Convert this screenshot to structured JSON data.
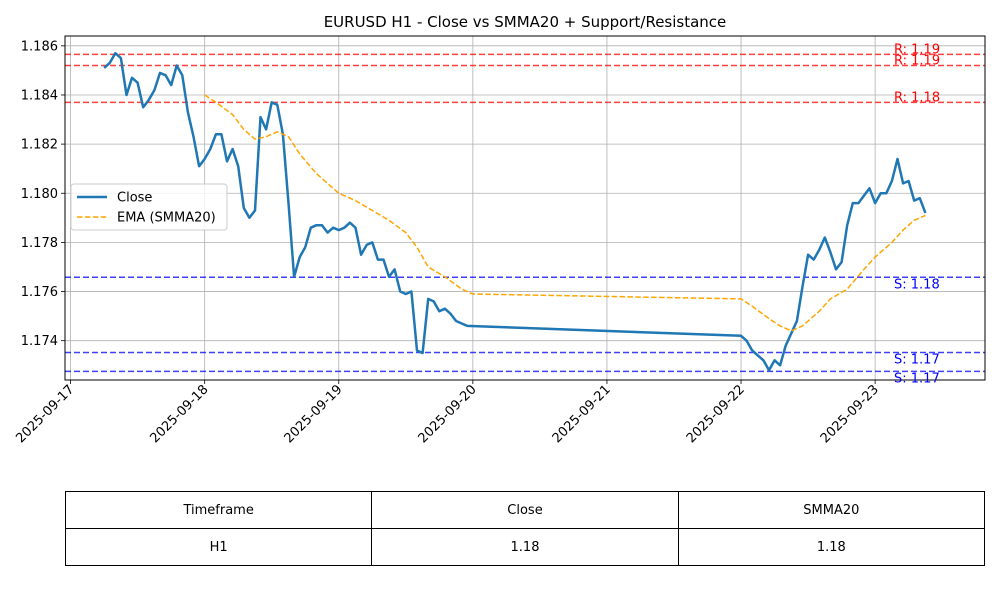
{
  "chart_data": {
    "type": "line",
    "title": "EURUSD H1 - Close vs SMMA20 + Support/Resistance",
    "xlabel": "",
    "ylabel": "",
    "xlim": [
      "2025-09-16 23:00",
      "2025-09-23 19:40"
    ],
    "ylim": [
      1.1724,
      1.1864
    ],
    "grid": true,
    "legend_position": "center-left",
    "x_ticks": [
      "2025-09-17",
      "2025-09-18",
      "2025-09-19",
      "2025-09-20",
      "2025-09-21",
      "2025-09-22",
      "2025-09-23"
    ],
    "y_ticks": [
      "1.174",
      "1.176",
      "1.178",
      "1.180",
      "1.182",
      "1.184",
      "1.186"
    ],
    "series": [
      {
        "name": "Close",
        "color": "#1f77b4",
        "style": "solid",
        "points": [
          [
            "2025-09-17 06:00",
            1.1851
          ],
          [
            "2025-09-17 07:00",
            1.1853
          ],
          [
            "2025-09-17 08:00",
            1.1857
          ],
          [
            "2025-09-17 09:00",
            1.1855
          ],
          [
            "2025-09-17 10:00",
            1.184
          ],
          [
            "2025-09-17 11:00",
            1.1847
          ],
          [
            "2025-09-17 12:00",
            1.1845
          ],
          [
            "2025-09-17 13:00",
            1.1835
          ],
          [
            "2025-09-17 14:00",
            1.1838
          ],
          [
            "2025-09-17 15:00",
            1.1842
          ],
          [
            "2025-09-17 16:00",
            1.1849
          ],
          [
            "2025-09-17 17:00",
            1.1848
          ],
          [
            "2025-09-17 18:00",
            1.1844
          ],
          [
            "2025-09-17 19:00",
            1.1852
          ],
          [
            "2025-09-17 20:00",
            1.1848
          ],
          [
            "2025-09-17 21:00",
            1.1833
          ],
          [
            "2025-09-17 22:00",
            1.1823
          ],
          [
            "2025-09-17 23:00",
            1.1811
          ],
          [
            "2025-09-18 00:00",
            1.1814
          ],
          [
            "2025-09-18 01:00",
            1.1818
          ],
          [
            "2025-09-18 02:00",
            1.1824
          ],
          [
            "2025-09-18 03:00",
            1.1824
          ],
          [
            "2025-09-18 04:00",
            1.1813
          ],
          [
            "2025-09-18 05:00",
            1.1818
          ],
          [
            "2025-09-18 06:00",
            1.1811
          ],
          [
            "2025-09-18 07:00",
            1.1794
          ],
          [
            "2025-09-18 08:00",
            1.179
          ],
          [
            "2025-09-18 09:00",
            1.1793
          ],
          [
            "2025-09-18 10:00",
            1.1831
          ],
          [
            "2025-09-18 11:00",
            1.1826
          ],
          [
            "2025-09-18 12:00",
            1.1837
          ],
          [
            "2025-09-18 13:00",
            1.1836
          ],
          [
            "2025-09-18 14:00",
            1.1824
          ],
          [
            "2025-09-18 15:00",
            1.1796
          ],
          [
            "2025-09-18 16:00",
            1.1766
          ],
          [
            "2025-09-18 17:00",
            1.1774
          ],
          [
            "2025-09-18 18:00",
            1.1778
          ],
          [
            "2025-09-18 19:00",
            1.1786
          ],
          [
            "2025-09-18 20:00",
            1.1787
          ],
          [
            "2025-09-18 21:00",
            1.1787
          ],
          [
            "2025-09-18 22:00",
            1.1784
          ],
          [
            "2025-09-18 23:00",
            1.1786
          ],
          [
            "2025-09-19 00:00",
            1.1785
          ],
          [
            "2025-09-19 01:00",
            1.1786
          ],
          [
            "2025-09-19 02:00",
            1.1788
          ],
          [
            "2025-09-19 03:00",
            1.1786
          ],
          [
            "2025-09-19 04:00",
            1.1775
          ],
          [
            "2025-09-19 05:00",
            1.1779
          ],
          [
            "2025-09-19 06:00",
            1.178
          ],
          [
            "2025-09-19 07:00",
            1.1773
          ],
          [
            "2025-09-19 08:00",
            1.1773
          ],
          [
            "2025-09-19 09:00",
            1.1766
          ],
          [
            "2025-09-19 10:00",
            1.1769
          ],
          [
            "2025-09-19 11:00",
            1.176
          ],
          [
            "2025-09-19 12:00",
            1.1759
          ],
          [
            "2025-09-19 13:00",
            1.176
          ],
          [
            "2025-09-19 14:00",
            1.1736
          ],
          [
            "2025-09-19 15:00",
            1.1735
          ],
          [
            "2025-09-19 16:00",
            1.1757
          ],
          [
            "2025-09-19 17:00",
            1.1756
          ],
          [
            "2025-09-19 18:00",
            1.1752
          ],
          [
            "2025-09-19 19:00",
            1.1753
          ],
          [
            "2025-09-19 20:00",
            1.1751
          ],
          [
            "2025-09-19 21:00",
            1.1748
          ],
          [
            "2025-09-19 22:00",
            1.1747
          ],
          [
            "2025-09-19 23:00",
            1.1746
          ],
          [
            "2025-09-22 00:00",
            1.1742
          ],
          [
            "2025-09-22 01:00",
            1.174
          ],
          [
            "2025-09-22 02:00",
            1.1736
          ],
          [
            "2025-09-22 03:00",
            1.1734
          ],
          [
            "2025-09-22 04:00",
            1.1732
          ],
          [
            "2025-09-22 05:00",
            1.1728
          ],
          [
            "2025-09-22 06:00",
            1.1732
          ],
          [
            "2025-09-22 07:00",
            1.173
          ],
          [
            "2025-09-22 08:00",
            1.1738
          ],
          [
            "2025-09-22 09:00",
            1.1743
          ],
          [
            "2025-09-22 10:00",
            1.1748
          ],
          [
            "2025-09-22 11:00",
            1.1762
          ],
          [
            "2025-09-22 12:00",
            1.1775
          ],
          [
            "2025-09-22 13:00",
            1.1773
          ],
          [
            "2025-09-22 14:00",
            1.1777
          ],
          [
            "2025-09-22 15:00",
            1.1782
          ],
          [
            "2025-09-22 16:00",
            1.1776
          ],
          [
            "2025-09-22 17:00",
            1.1769
          ],
          [
            "2025-09-22 18:00",
            1.1772
          ],
          [
            "2025-09-22 19:00",
            1.1787
          ],
          [
            "2025-09-22 20:00",
            1.1796
          ],
          [
            "2025-09-22 21:00",
            1.1796
          ],
          [
            "2025-09-22 22:00",
            1.1799
          ],
          [
            "2025-09-22 23:00",
            1.1802
          ],
          [
            "2025-09-23 00:00",
            1.1796
          ],
          [
            "2025-09-23 01:00",
            1.18
          ],
          [
            "2025-09-23 02:00",
            1.18
          ],
          [
            "2025-09-23 03:00",
            1.1805
          ],
          [
            "2025-09-23 04:00",
            1.1814
          ],
          [
            "2025-09-23 05:00",
            1.1804
          ],
          [
            "2025-09-23 06:00",
            1.1805
          ],
          [
            "2025-09-23 07:00",
            1.1797
          ],
          [
            "2025-09-23 08:00",
            1.1798
          ],
          [
            "2025-09-23 09:00",
            1.1792
          ]
        ]
      },
      {
        "name": "EMA (SMMA20)",
        "color": "#ffa500",
        "style": "dashed",
        "points": [
          [
            "2025-09-18 00:00",
            1.184
          ],
          [
            "2025-09-18 02:00",
            1.1837
          ],
          [
            "2025-09-18 05:00",
            1.1832
          ],
          [
            "2025-09-18 07:00",
            1.1826
          ],
          [
            "2025-09-18 09:00",
            1.1822
          ],
          [
            "2025-09-18 11:00",
            1.1823
          ],
          [
            "2025-09-18 13:00",
            1.1825
          ],
          [
            "2025-09-18 15:00",
            1.1823
          ],
          [
            "2025-09-18 17:00",
            1.1816
          ],
          [
            "2025-09-18 20:00",
            1.1808
          ],
          [
            "2025-09-19 00:00",
            1.18
          ],
          [
            "2025-09-19 03:00",
            1.1797
          ],
          [
            "2025-09-19 06:00",
            1.1793
          ],
          [
            "2025-09-19 09:00",
            1.1789
          ],
          [
            "2025-09-19 12:00",
            1.1784
          ],
          [
            "2025-09-19 14:00",
            1.1778
          ],
          [
            "2025-09-19 16:00",
            1.177
          ],
          [
            "2025-09-19 19:00",
            1.1766
          ],
          [
            "2025-09-19 22:00",
            1.1761
          ],
          [
            "2025-09-20 00:00",
            1.1759
          ],
          [
            "2025-09-22 00:00",
            1.1757
          ],
          [
            "2025-09-22 02:00",
            1.1754
          ],
          [
            "2025-09-22 05:00",
            1.1749
          ],
          [
            "2025-09-22 07:00",
            1.1746
          ],
          [
            "2025-09-22 09:00",
            1.1744
          ],
          [
            "2025-09-22 11:00",
            1.1746
          ],
          [
            "2025-09-22 14:00",
            1.1752
          ],
          [
            "2025-09-22 16:00",
            1.1757
          ],
          [
            "2025-09-22 19:00",
            1.1761
          ],
          [
            "2025-09-22 22:00",
            1.1769
          ],
          [
            "2025-09-23 00:00",
            1.1774
          ],
          [
            "2025-09-23 03:00",
            1.178
          ],
          [
            "2025-09-23 05:00",
            1.1785
          ],
          [
            "2025-09-23 07:00",
            1.1789
          ],
          [
            "2025-09-23 09:00",
            1.1791
          ]
        ]
      }
    ],
    "levels": [
      {
        "kind": "resistance",
        "value": 1.18565,
        "label": "R: 1.19",
        "color": "#ff0000"
      },
      {
        "kind": "resistance",
        "value": 1.1852,
        "label": "R: 1.19",
        "color": "#ff0000"
      },
      {
        "kind": "resistance",
        "value": 1.1837,
        "label": "R: 1.18",
        "color": "#ff0000"
      },
      {
        "kind": "support",
        "value": 1.17658,
        "label": "S: 1.18",
        "color": "#0000ff"
      },
      {
        "kind": "support",
        "value": 1.17352,
        "label": "S: 1.17",
        "color": "#0000ff"
      },
      {
        "kind": "support",
        "value": 1.17275,
        "label": "S: 1.17",
        "color": "#0000ff"
      }
    ],
    "table": {
      "headers": [
        "Timeframe",
        "Close",
        "SMMA20"
      ],
      "rows": [
        [
          "H1",
          "1.18",
          "1.18"
        ]
      ]
    }
  }
}
